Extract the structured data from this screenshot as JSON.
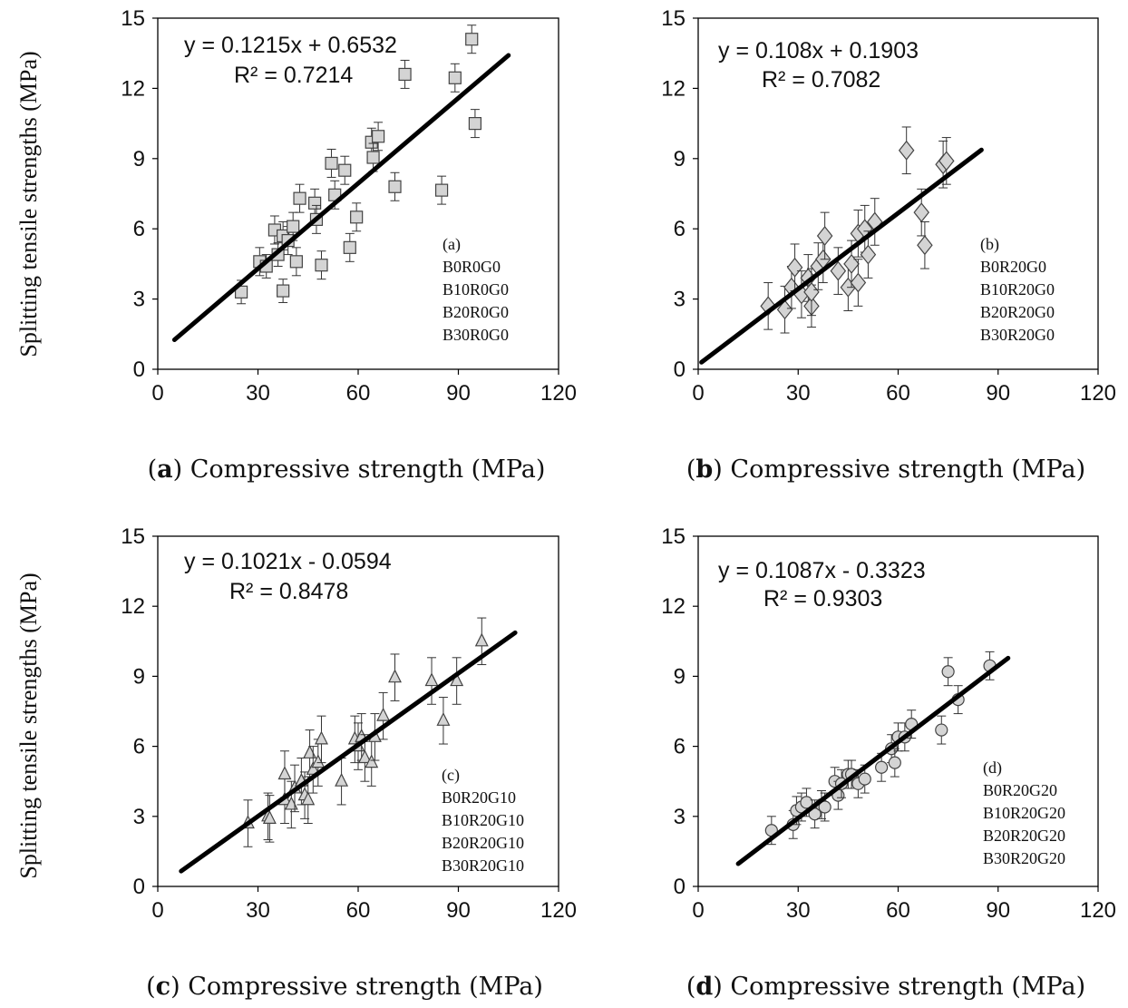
{
  "figure": {
    "y_axis_label": "Splitting tensile strengths (MPa)"
  },
  "chart_data": [
    {
      "type": "scatter",
      "panel": "a",
      "marker": "square",
      "caption_letter": "a",
      "xlabel": "Compressive strength (MPa)",
      "ylabel": "Splitting tensile strengths (MPa)",
      "xlim": [
        0,
        120
      ],
      "ylim": [
        0,
        15
      ],
      "xticks": [
        0,
        30,
        60,
        90,
        120
      ],
      "yticks": [
        0,
        3,
        6,
        9,
        12,
        15
      ],
      "equation": "y = 0.1215x + 0.6532",
      "r2": "R² = 0.7214",
      "fit": {
        "slope": 0.1215,
        "intercept": 0.6532,
        "x_range": [
          5,
          105
        ]
      },
      "legend_label": "(a)",
      "legend": [
        "B0R0G0",
        "B10R0G0",
        "B20R0G0",
        "B30R0G0"
      ],
      "points": [
        [
          25,
          3.3,
          0.5
        ],
        [
          30.5,
          4.6,
          0.6
        ],
        [
          32.5,
          4.4,
          0.5
        ],
        [
          35,
          5.95,
          0.6
        ],
        [
          36,
          4.9,
          0.5
        ],
        [
          37.5,
          3.35,
          0.5
        ],
        [
          37.5,
          5.7,
          0.6
        ],
        [
          39,
          5.5,
          0.6
        ],
        [
          40.5,
          6.1,
          0.6
        ],
        [
          41.5,
          4.6,
          0.6
        ],
        [
          42.5,
          7.3,
          0.6
        ],
        [
          47,
          7.1,
          0.6
        ],
        [
          47.5,
          6.4,
          0.6
        ],
        [
          49,
          4.45,
          0.6
        ],
        [
          52,
          8.8,
          0.6
        ],
        [
          53,
          7.45,
          0.6
        ],
        [
          56,
          8.5,
          0.6
        ],
        [
          57.5,
          5.2,
          0.6
        ],
        [
          59.5,
          6.5,
          0.6
        ],
        [
          64,
          9.7,
          0.6
        ],
        [
          64.5,
          9.05,
          0.6
        ],
        [
          66,
          9.95,
          0.6
        ],
        [
          71,
          7.8,
          0.6
        ],
        [
          74,
          12.6,
          0.6
        ],
        [
          85,
          7.65,
          0.6
        ],
        [
          89,
          12.45,
          0.6
        ],
        [
          94,
          14.1,
          0.6
        ],
        [
          95,
          10.5,
          0.6
        ]
      ]
    },
    {
      "type": "scatter",
      "panel": "b",
      "marker": "diamond",
      "caption_letter": "b",
      "xlabel": "Compressive strength (MPa)",
      "ylabel": "Splitting tensile strengths (MPa)",
      "xlim": [
        0,
        120
      ],
      "ylim": [
        0,
        15
      ],
      "xticks": [
        0,
        30,
        60,
        90,
        120
      ],
      "yticks": [
        0,
        3,
        6,
        9,
        12,
        15
      ],
      "equation": "y = 0.108x + 0.1903",
      "r2": "R² = 0.7082",
      "fit": {
        "slope": 0.108,
        "intercept": 0.1903,
        "x_range": [
          1,
          85
        ]
      },
      "legend_label": "(b)",
      "legend": [
        "B0R20G0",
        "B10R20G0",
        "B20R20G0",
        "B30R20G0"
      ],
      "points": [
        [
          21,
          2.7,
          1.0
        ],
        [
          26,
          2.55,
          1.0
        ],
        [
          28,
          3.5,
          0.9
        ],
        [
          29,
          4.35,
          1.0
        ],
        [
          31,
          3.2,
          1.0
        ],
        [
          33,
          3.9,
          1.0
        ],
        [
          34,
          2.7,
          0.9
        ],
        [
          34,
          3.3,
          1.0
        ],
        [
          36,
          4.4,
          1.0
        ],
        [
          37.5,
          4.7,
          1.0
        ],
        [
          38,
          5.7,
          1.0
        ],
        [
          42,
          4.2,
          1.0
        ],
        [
          45,
          3.5,
          1.0
        ],
        [
          46,
          4.5,
          1.0
        ],
        [
          48,
          3.7,
          1.0
        ],
        [
          48,
          5.8,
          1.0
        ],
        [
          50,
          6.0,
          1.0
        ],
        [
          51,
          4.9,
          1.0
        ],
        [
          53,
          6.3,
          1.0
        ],
        [
          62.5,
          9.35,
          1.0
        ],
        [
          67,
          6.7,
          1.0
        ],
        [
          68,
          5.3,
          1.0
        ],
        [
          73.5,
          8.75,
          1.0
        ],
        [
          74.5,
          8.9,
          1.0
        ]
      ]
    },
    {
      "type": "scatter",
      "panel": "c",
      "marker": "triangle",
      "caption_letter": "c",
      "xlabel": "Compressive strength (MPa)",
      "ylabel": "Splitting tensile strengths (MPa)",
      "xlim": [
        0,
        120
      ],
      "ylim": [
        0,
        15
      ],
      "xticks": [
        0,
        30,
        60,
        90,
        120
      ],
      "yticks": [
        0,
        3,
        6,
        9,
        12,
        15
      ],
      "equation": "y = 0.1021x - 0.0594",
      "r2": "R² = 0.8478",
      "fit": {
        "slope": 0.1021,
        "intercept": -0.0594,
        "x_range": [
          7,
          107
        ]
      },
      "legend_label": "(c)",
      "legend": [
        "B0R20G10",
        "B10R20G10",
        "B20R20G10",
        "B30R20G10"
      ],
      "points": [
        [
          27,
          2.7,
          1.0
        ],
        [
          33,
          3.0,
          1.0
        ],
        [
          33.5,
          2.9,
          1.0
        ],
        [
          38,
          3.7,
          1.0
        ],
        [
          38,
          4.8,
          1.0
        ],
        [
          40,
          3.5,
          1.0
        ],
        [
          41,
          4.2,
          1.0
        ],
        [
          43,
          4.5,
          1.0
        ],
        [
          44,
          3.9,
          1.0
        ],
        [
          45,
          3.7,
          1.0
        ],
        [
          45.5,
          5.7,
          1.0
        ],
        [
          46.5,
          5.0,
          1.0
        ],
        [
          48,
          5.3,
          1.0
        ],
        [
          49,
          6.3,
          1.0
        ],
        [
          55,
          4.5,
          1.0
        ],
        [
          59,
          6.3,
          1.0
        ],
        [
          60,
          6.0,
          1.0
        ],
        [
          61,
          6.4,
          1.0
        ],
        [
          62,
          5.5,
          1.0
        ],
        [
          64,
          5.3,
          1.0
        ],
        [
          65,
          6.4,
          1.0
        ],
        [
          67.5,
          7.3,
          1.0
        ],
        [
          71,
          8.95,
          1.0
        ],
        [
          82,
          8.8,
          1.0
        ],
        [
          85.5,
          7.1,
          1.0
        ],
        [
          89.5,
          8.8,
          1.0
        ],
        [
          97,
          10.5,
          1.0
        ]
      ]
    },
    {
      "type": "scatter",
      "panel": "d",
      "marker": "circle",
      "caption_letter": "d",
      "xlabel": "Compressive strength (MPa)",
      "ylabel": "Splitting tensile strengths (MPa)",
      "xlim": [
        0,
        120
      ],
      "ylim": [
        0,
        15
      ],
      "xticks": [
        0,
        30,
        60,
        90,
        120
      ],
      "yticks": [
        0,
        3,
        6,
        9,
        12,
        15
      ],
      "equation": "y = 0.1087x - 0.3323",
      "r2": "R² = 0.9303",
      "fit": {
        "slope": 0.1087,
        "intercept": -0.3323,
        "x_range": [
          12,
          93
        ]
      },
      "legend_label": "(d)",
      "legend": [
        "B0R20G20",
        "B10R20G20",
        "B20R20G20",
        "B30R20G20"
      ],
      "points": [
        [
          22,
          2.4,
          0.6
        ],
        [
          28.5,
          2.65,
          0.6
        ],
        [
          29.5,
          3.25,
          0.6
        ],
        [
          31,
          3.4,
          0.6
        ],
        [
          32.5,
          3.6,
          0.6
        ],
        [
          35,
          3.1,
          0.6
        ],
        [
          37,
          3.5,
          0.6
        ],
        [
          38,
          3.4,
          0.6
        ],
        [
          41,
          4.5,
          0.6
        ],
        [
          42,
          3.9,
          0.6
        ],
        [
          43,
          4.4,
          0.6
        ],
        [
          45,
          4.8,
          0.6
        ],
        [
          46,
          4.8,
          0.6
        ],
        [
          48,
          4.4,
          0.6
        ],
        [
          50,
          4.6,
          0.6
        ],
        [
          55,
          5.1,
          0.6
        ],
        [
          58,
          5.9,
          0.6
        ],
        [
          59,
          5.3,
          0.6
        ],
        [
          60,
          6.4,
          0.6
        ],
        [
          62,
          6.4,
          0.6
        ],
        [
          64,
          6.95,
          0.6
        ],
        [
          73,
          6.7,
          0.6
        ],
        [
          75,
          9.2,
          0.6
        ],
        [
          78,
          8.0,
          0.6
        ],
        [
          87.5,
          9.45,
          0.6
        ]
      ]
    }
  ]
}
